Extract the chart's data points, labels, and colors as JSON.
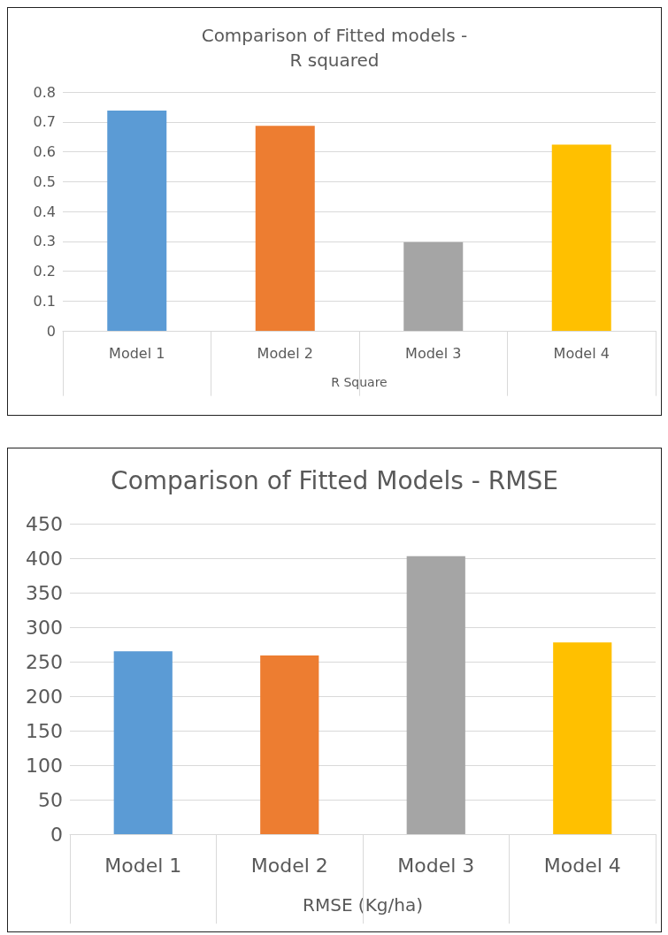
{
  "chart_data": [
    {
      "type": "bar",
      "title": "Comparison of Fitted models -\nR squared",
      "xlabel": "R Square",
      "categories": [
        "Model 1",
        "Model 2",
        "Model 3",
        "Model 4"
      ],
      "values": [
        0.738,
        0.687,
        0.297,
        0.624
      ],
      "colors": [
        "#5b9bd5",
        "#ed7d31",
        "#a5a5a5",
        "#ffc000"
      ],
      "ylim": [
        0,
        0.8
      ],
      "yticks": [
        0,
        0.1,
        0.2,
        0.3,
        0.4,
        0.5,
        0.6,
        0.7,
        0.8
      ],
      "grid": "y"
    },
    {
      "type": "bar",
      "title": "Comparison of Fitted Models - RMSE",
      "xlabel": "RMSE (Kg/ha)",
      "categories": [
        "Model 1",
        "Model 2",
        "Model 3",
        "Model 4"
      ],
      "values": [
        265,
        259,
        403,
        278
      ],
      "colors": [
        "#5b9bd5",
        "#ed7d31",
        "#a5a5a5",
        "#ffc000"
      ],
      "ylim": [
        0,
        450
      ],
      "yticks": [
        0,
        50,
        100,
        150,
        200,
        250,
        300,
        350,
        400,
        450
      ],
      "grid": "y"
    }
  ]
}
